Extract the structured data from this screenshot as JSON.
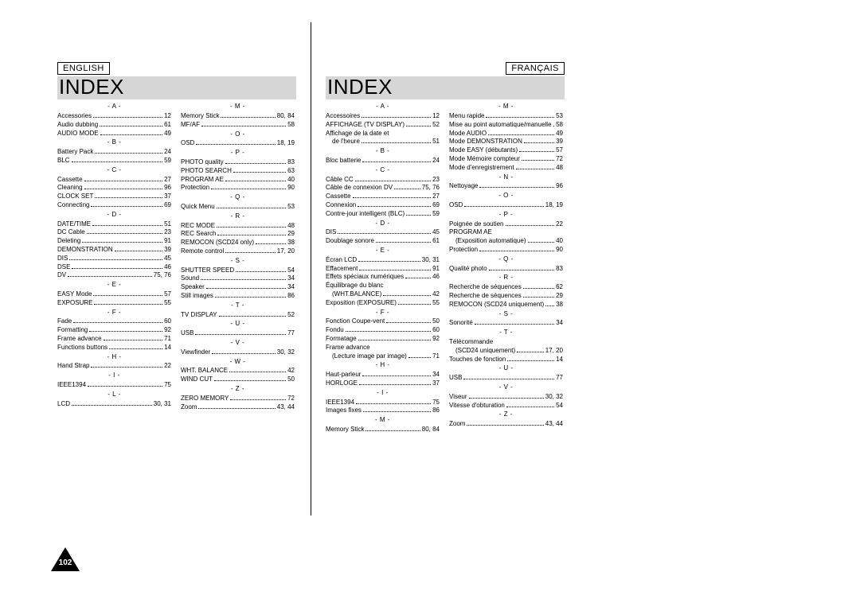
{
  "page_number": "102",
  "langs": [
    {
      "label": "ENGLISH",
      "title": "INDEX",
      "columns": [
        [
          {
            "head": "- A -"
          },
          {
            "label": "Accessories",
            "pages": "12"
          },
          {
            "label": "Audio dubbing",
            "pages": "61"
          },
          {
            "label": "AUDIO MODE",
            "pages": "49"
          },
          {
            "head": "- B -"
          },
          {
            "label": "Battery Pack",
            "pages": "24"
          },
          {
            "label": "BLC",
            "pages": "59"
          },
          {
            "head": "- C -"
          },
          {
            "label": "Cassette",
            "pages": "27"
          },
          {
            "label": "Cleaning",
            "pages": "96"
          },
          {
            "label": "CLOCK SET",
            "pages": "37"
          },
          {
            "label": "Connecting",
            "pages": "69"
          },
          {
            "head": "- D -"
          },
          {
            "label": "DATE/TIME",
            "pages": "51"
          },
          {
            "label": "DC Cable",
            "pages": "23"
          },
          {
            "label": "Deleting",
            "pages": "91"
          },
          {
            "label": "DEMONSTRATION",
            "pages": "39"
          },
          {
            "label": "DIS",
            "pages": "45"
          },
          {
            "label": "DSE",
            "pages": "46"
          },
          {
            "label": "DV",
            "pages": "75, 76"
          },
          {
            "head": "- E -"
          },
          {
            "label": "EASY Mode",
            "pages": "57"
          },
          {
            "label": "EXPOSURE",
            "pages": "55"
          },
          {
            "head": "- F -"
          },
          {
            "label": "Fade",
            "pages": "60"
          },
          {
            "label": "Formatting",
            "pages": "92"
          },
          {
            "label": "Frame advance",
            "pages": "71"
          },
          {
            "label": "Functions buttons",
            "pages": "14"
          },
          {
            "head": "- H -"
          },
          {
            "label": "Hand Strap",
            "pages": "22"
          },
          {
            "head": "- I -"
          },
          {
            "label": "IEEE1394",
            "pages": "75"
          },
          {
            "head": "- L -"
          },
          {
            "label": "LCD",
            "pages": "30, 31"
          }
        ],
        [
          {
            "head": "- M -"
          },
          {
            "label": "Memory Stick",
            "pages": "80, 84"
          },
          {
            "label": "MF/AF",
            "pages": "58"
          },
          {
            "head": "- O -"
          },
          {
            "label": "OSD",
            "pages": "18, 19"
          },
          {
            "head": "- P -"
          },
          {
            "label": "PHOTO quality",
            "pages": "83"
          },
          {
            "label": "PHOTO SEARCH",
            "pages": "63"
          },
          {
            "label": "PROGRAM AE",
            "pages": "40"
          },
          {
            "label": "Protection",
            "pages": "90"
          },
          {
            "head": "- Q -"
          },
          {
            "label": "Quick Menu",
            "pages": "53"
          },
          {
            "head": "- R -"
          },
          {
            "label": "REC MODE",
            "pages": "48"
          },
          {
            "label": "REC Search",
            "pages": "29"
          },
          {
            "label": "REMOCON (SCD24 only)",
            "pages": "38"
          },
          {
            "label": "Remote control",
            "pages": "17, 20"
          },
          {
            "head": "- S -"
          },
          {
            "label": "SHUTTER SPEED",
            "pages": "54"
          },
          {
            "label": "Sound",
            "pages": "34"
          },
          {
            "label": "Speaker",
            "pages": "34"
          },
          {
            "label": "Still images",
            "pages": "86"
          },
          {
            "head": "- T -"
          },
          {
            "label": "TV DISPLAY",
            "pages": "52"
          },
          {
            "head": "- U -"
          },
          {
            "label": "USB",
            "pages": "77"
          },
          {
            "head": "- V -"
          },
          {
            "label": "Viewfinder",
            "pages": "30, 32"
          },
          {
            "head": "- W -"
          },
          {
            "label": "WHT. BALANCE",
            "pages": "42"
          },
          {
            "label": "WIND CUT",
            "pages": "50"
          },
          {
            "head": "- Z -"
          },
          {
            "label": "ZERO MEMORY",
            "pages": "72"
          },
          {
            "label": "Zoom",
            "pages": "43, 44"
          }
        ]
      ]
    },
    {
      "label": "FRANÇAIS",
      "title": "INDEX",
      "columns": [
        [
          {
            "head": "- A -"
          },
          {
            "label": "Accessoires",
            "pages": "12"
          },
          {
            "label": "AFFICHAGE (TV DISPLAY)",
            "pages": "52"
          },
          {
            "label": "Affichage de la date et",
            "noleader": true
          },
          {
            "label": "de l'heure",
            "pages": "51",
            "indent": true
          },
          {
            "head": "- B -"
          },
          {
            "label": "Bloc batterie",
            "pages": "24"
          },
          {
            "head": "- C -"
          },
          {
            "label": "Câble CC",
            "pages": "23"
          },
          {
            "label": "Câble de connexion DV",
            "pages": "75, 76"
          },
          {
            "label": "Cassette",
            "pages": "27"
          },
          {
            "label": "Connexion",
            "pages": "69"
          },
          {
            "label": "Contre-jour intelligent (BLC)",
            "pages": "59"
          },
          {
            "head": "- D -"
          },
          {
            "label": "DIS",
            "pages": "45"
          },
          {
            "label": "Doublage sonore",
            "pages": "61"
          },
          {
            "head": "- E -"
          },
          {
            "label": "Écran LCD",
            "pages": "30, 31"
          },
          {
            "label": "Effacement",
            "pages": "91"
          },
          {
            "label": "Effets spéciaux numériques",
            "pages": "46"
          },
          {
            "label": "Équilibrage du blanc",
            "noleader": true
          },
          {
            "label": "(WHT.BALANCE)",
            "pages": "42",
            "indent": true
          },
          {
            "label": "Exposition (EXPOSURE)",
            "pages": "55"
          },
          {
            "head": "- F -"
          },
          {
            "label": "Fonction Coupe-vent",
            "pages": "50"
          },
          {
            "label": "Fondu",
            "pages": "60"
          },
          {
            "label": "Formatage",
            "pages": "92"
          },
          {
            "label": "Frame advance",
            "noleader": true
          },
          {
            "label": "(Lecture image par image)",
            "pages": "71",
            "indent": true
          },
          {
            "head": "- H -"
          },
          {
            "label": "Haut-parleur",
            "pages": "34"
          },
          {
            "label": "HORLOGE",
            "pages": "37"
          },
          {
            "head": "- I -"
          },
          {
            "label": "IEEE1394",
            "pages": "75"
          },
          {
            "label": "Images fixes",
            "pages": "86"
          },
          {
            "head": "- M -"
          },
          {
            "label": "Memory Stick",
            "pages": "80, 84"
          }
        ],
        [
          {
            "head": "- M -"
          },
          {
            "label": "Menu rapide",
            "pages": "53"
          },
          {
            "label": "Mise au point automatique/manuelle",
            "pages": "58"
          },
          {
            "label": "Mode AUDIO",
            "pages": "49"
          },
          {
            "label": "Mode DEMONSTRATION",
            "pages": "39"
          },
          {
            "label": "Mode EASY (débutants)",
            "pages": "57"
          },
          {
            "label": "Mode Mémoire compteur",
            "pages": "72"
          },
          {
            "label": "Mode d'enregistrement",
            "pages": "48"
          },
          {
            "head": "- N -"
          },
          {
            "label": "Nettoyage",
            "pages": "96"
          },
          {
            "head": "- O -"
          },
          {
            "label": "OSD",
            "pages": "18, 19"
          },
          {
            "head": "- P -"
          },
          {
            "label": "Poignée de soutien",
            "pages": "22"
          },
          {
            "label": "PROGRAM AE",
            "noleader": true
          },
          {
            "label": "(Exposition automatique)",
            "pages": "40",
            "indent": true
          },
          {
            "label": "Protection",
            "pages": "90"
          },
          {
            "head": "- Q -"
          },
          {
            "label": "Qualité photo",
            "pages": "83"
          },
          {
            "head": "- R -"
          },
          {
            "label": "Recherche de séquences",
            "pages": "62"
          },
          {
            "label": "Recherche de séquences",
            "pages": "29"
          },
          {
            "label": "REMOCON (SCD24 uniquement)",
            "pages": "38"
          },
          {
            "head": "- S -"
          },
          {
            "label": "Sonorité",
            "pages": "34"
          },
          {
            "head": "- T -"
          },
          {
            "label": "Télécommande",
            "noleader": true
          },
          {
            "label": "(SCD24 uniquement)",
            "pages": "17, 20",
            "indent": true
          },
          {
            "label": "Touches de fonction",
            "pages": "14"
          },
          {
            "head": "- U -"
          },
          {
            "label": "USB",
            "pages": "77"
          },
          {
            "head": "- V -"
          },
          {
            "label": "Viseur",
            "pages": "30, 32"
          },
          {
            "label": "Vitesse d'obturation",
            "pages": "54"
          },
          {
            "head": "- Z -"
          },
          {
            "label": "Zoom",
            "pages": "43, 44"
          }
        ]
      ]
    }
  ]
}
